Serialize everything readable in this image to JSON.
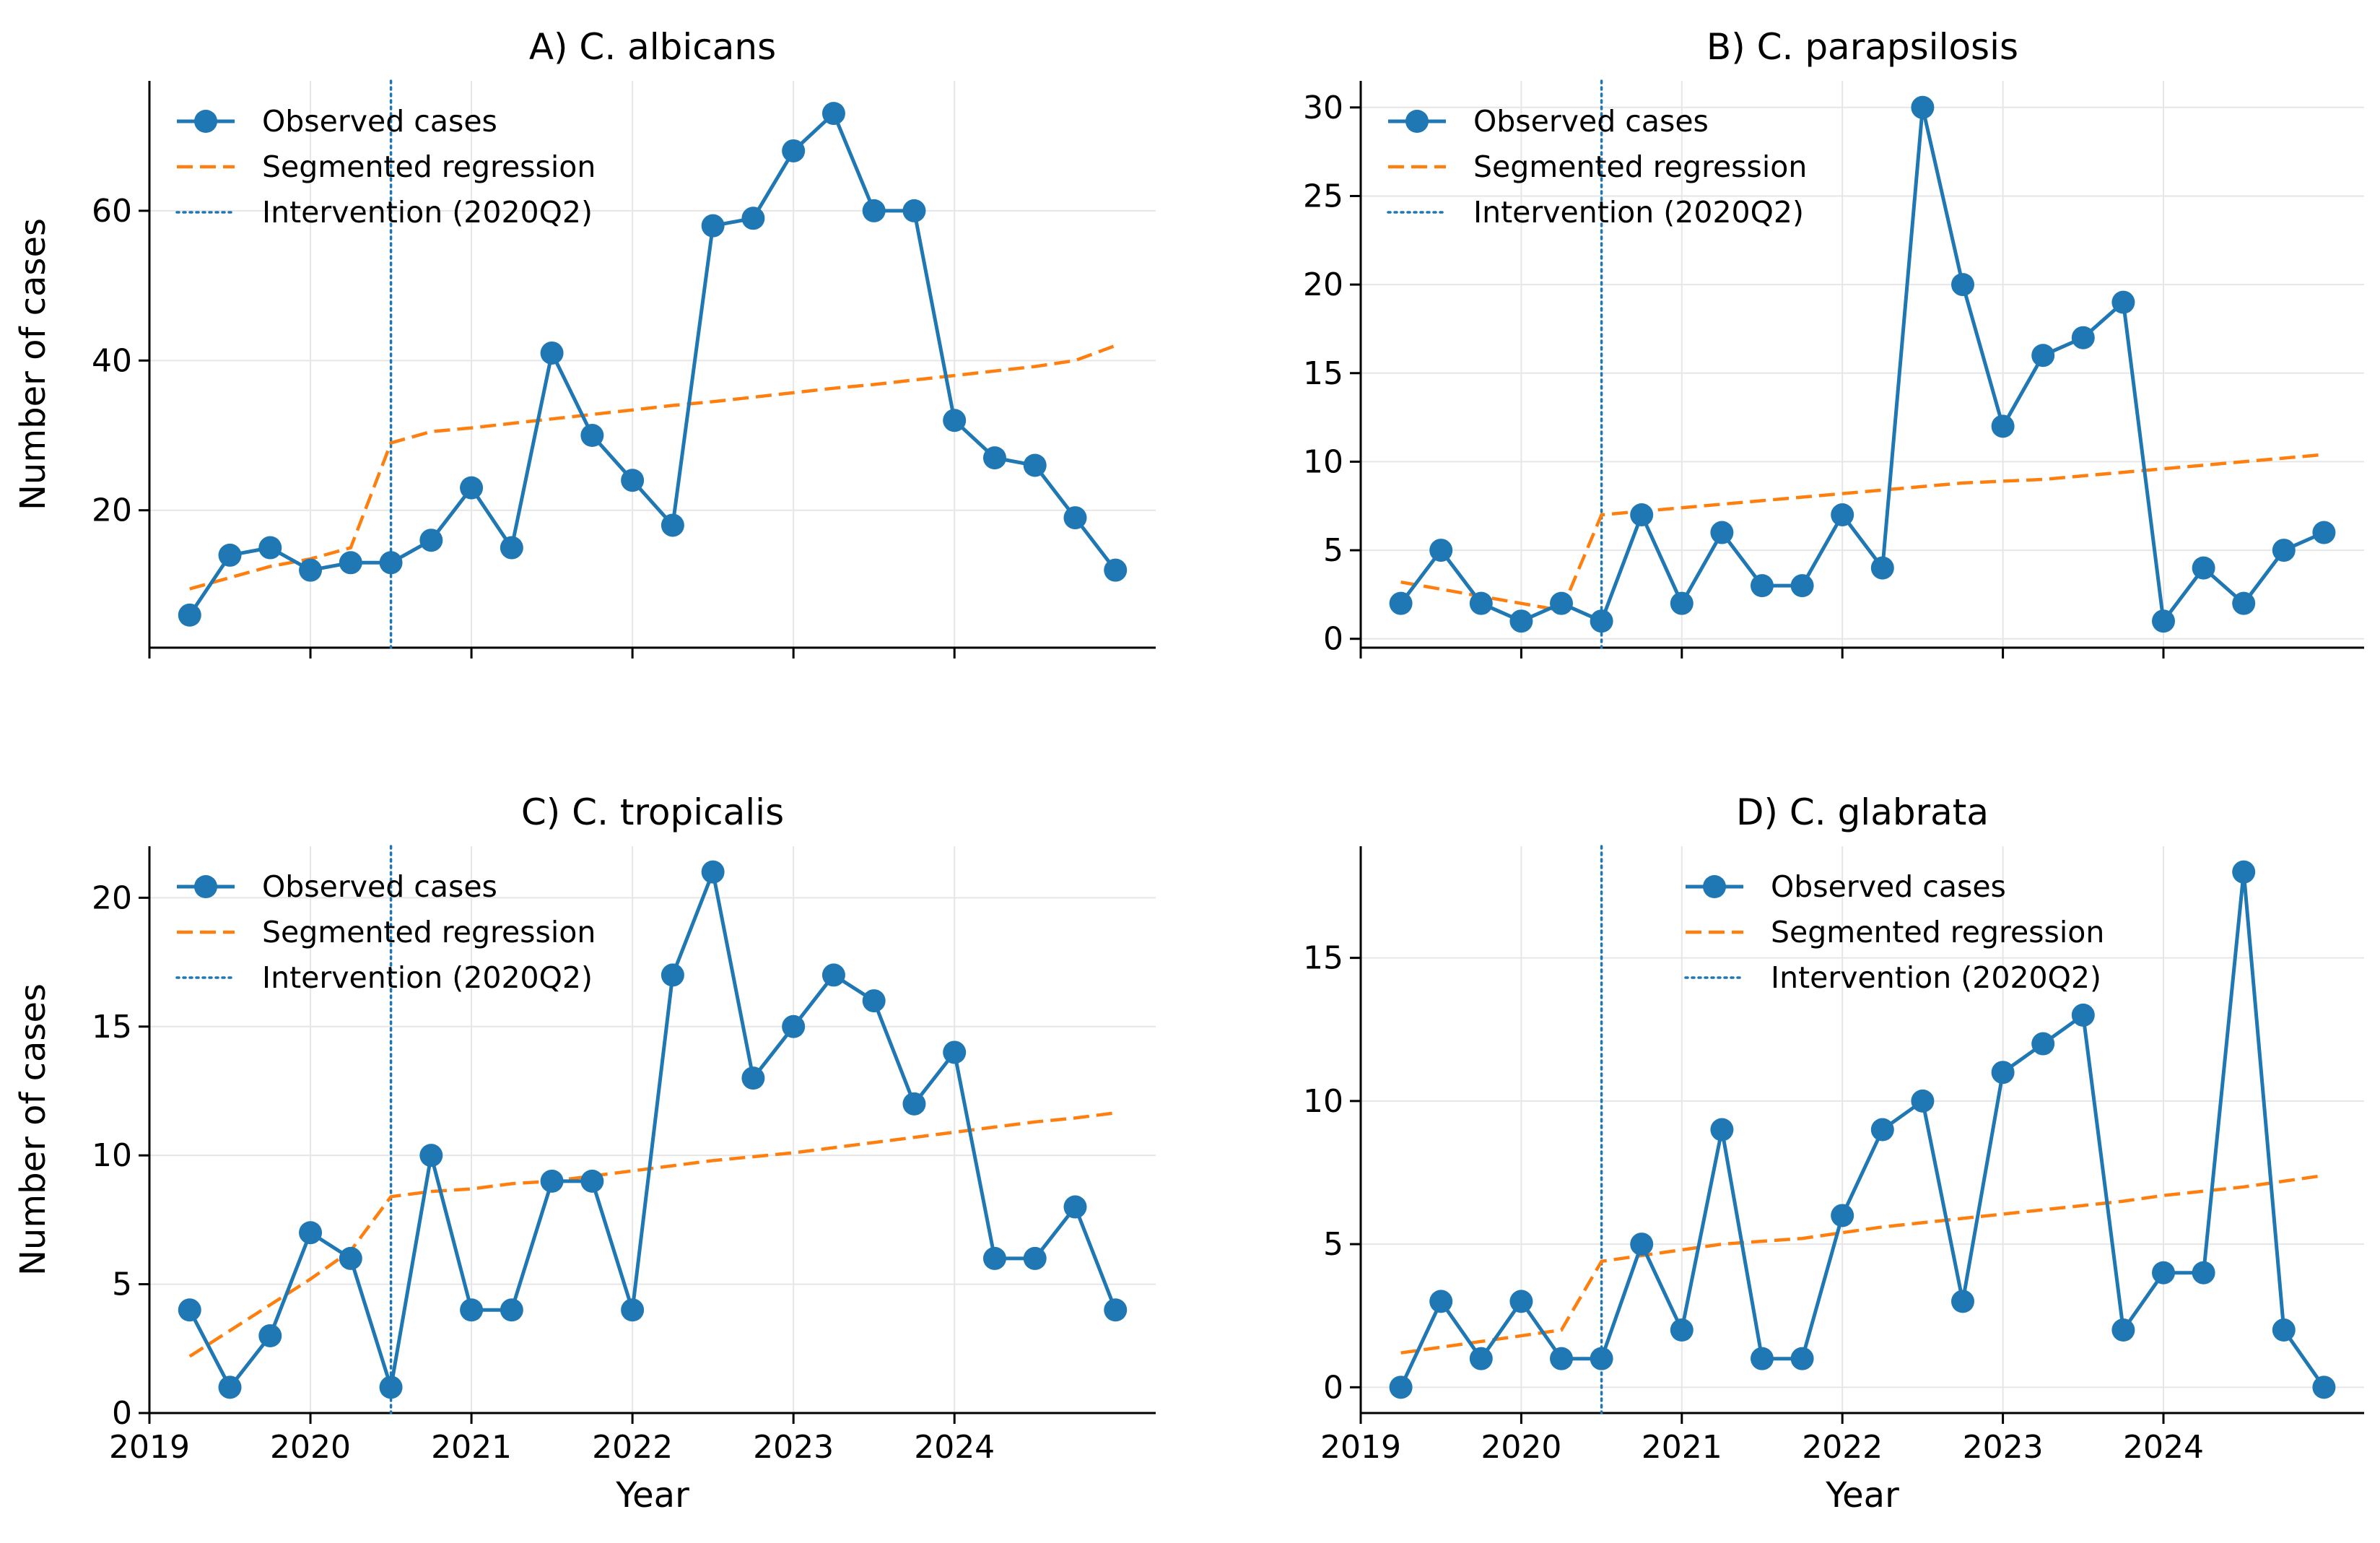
{
  "chart_data": [
    {
      "type": "line",
      "title": "A) C. albicans",
      "xlabel": "",
      "ylabel": "Number of cases",
      "xlim": [
        2019.0,
        2025.25
      ],
      "ylim": [
        1.65,
        77.35
      ],
      "yticks": [
        20,
        40,
        60
      ],
      "xticks": [
        2019,
        2020,
        2021,
        2022,
        2023,
        2024
      ],
      "show_xtick_labels": false,
      "grid": true,
      "legend_position": "top-left",
      "legend": [
        "Observed cases",
        "Segmented regression",
        "Intervention (2020Q2)"
      ],
      "intervention_x": 2020.5,
      "x": [
        2019.25,
        2019.5,
        2019.75,
        2020.0,
        2020.25,
        2020.5,
        2020.75,
        2021.0,
        2021.25,
        2021.5,
        2021.75,
        2022.0,
        2022.25,
        2022.5,
        2022.75,
        2023.0,
        2023.25,
        2023.5,
        2023.75,
        2024.0,
        2024.25,
        2024.5,
        2024.75,
        2025.0
      ],
      "series": [
        {
          "name": "Observed cases",
          "values": [
            6,
            14,
            15,
            12,
            13,
            13,
            16,
            23,
            15,
            41,
            30,
            24,
            18,
            58,
            59,
            68,
            73,
            60,
            60,
            32,
            27,
            26,
            19,
            12
          ]
        },
        {
          "name": "Segmented regression",
          "values": [
            9.5,
            11.0,
            12.5,
            13.5,
            15.0,
            29.0,
            30.5,
            31.0,
            31.6,
            32.2,
            32.8,
            33.4,
            34.0,
            34.5,
            35.1,
            35.7,
            36.3,
            36.8,
            37.4,
            38.0,
            38.6,
            39.2,
            40.0,
            42.0
          ]
        }
      ]
    },
    {
      "type": "line",
      "title": "B) C. parapsilosis",
      "xlabel": "",
      "ylabel": "",
      "xlim": [
        2019.0,
        2025.25
      ],
      "ylim": [
        -0.5,
        31.5
      ],
      "yticks": [
        0,
        5,
        10,
        15,
        20,
        25,
        30
      ],
      "xticks": [
        2019,
        2020,
        2021,
        2022,
        2023,
        2024
      ],
      "show_xtick_labels": false,
      "grid": true,
      "legend_position": "top-left",
      "legend": [
        "Observed cases",
        "Segmented regression",
        "Intervention (2020Q2)"
      ],
      "intervention_x": 2020.5,
      "x": [
        2019.25,
        2019.5,
        2019.75,
        2020.0,
        2020.25,
        2020.5,
        2020.75,
        2021.0,
        2021.25,
        2021.5,
        2021.75,
        2022.0,
        2022.25,
        2022.5,
        2022.75,
        2023.0,
        2023.25,
        2023.5,
        2023.75,
        2024.0,
        2024.25,
        2024.5,
        2024.75,
        2025.0
      ],
      "series": [
        {
          "name": "Observed cases",
          "values": [
            2,
            5,
            2,
            1,
            2,
            1,
            7,
            2,
            6,
            3,
            3,
            7,
            4,
            30,
            20,
            12,
            16,
            17,
            19,
            1,
            4,
            2,
            5,
            6
          ]
        },
        {
          "name": "Segmented regression",
          "values": [
            3.2,
            2.8,
            2.4,
            2.0,
            1.6,
            7.0,
            7.2,
            7.4,
            7.6,
            7.8,
            8.0,
            8.2,
            8.4,
            8.6,
            8.8,
            8.9,
            9.0,
            9.2,
            9.4,
            9.6,
            9.8,
            10.0,
            10.2,
            10.4
          ]
        }
      ]
    },
    {
      "type": "line",
      "title": "C) C. tropicalis",
      "xlabel": "Year",
      "ylabel": "Number of cases",
      "xlim": [
        2019.0,
        2025.25
      ],
      "ylim": [
        0,
        22
      ],
      "yticks": [
        0,
        5,
        10,
        15,
        20
      ],
      "xticks": [
        2019,
        2020,
        2021,
        2022,
        2023,
        2024
      ],
      "show_xtick_labels": true,
      "grid": true,
      "legend_position": "top-left",
      "legend": [
        "Observed cases",
        "Segmented regression",
        "Intervention (2020Q2)"
      ],
      "intervention_x": 2020.5,
      "x": [
        2019.25,
        2019.5,
        2019.75,
        2020.0,
        2020.25,
        2020.5,
        2020.75,
        2021.0,
        2021.25,
        2021.5,
        2021.75,
        2022.0,
        2022.25,
        2022.5,
        2022.75,
        2023.0,
        2023.25,
        2023.5,
        2023.75,
        2024.0,
        2024.25,
        2024.5,
        2024.75,
        2025.0
      ],
      "series": [
        {
          "name": "Observed cases",
          "values": [
            4,
            1,
            3,
            7,
            6,
            1,
            10,
            4,
            4,
            9,
            9,
            4,
            17,
            21,
            13,
            15,
            17,
            16,
            12,
            14,
            6,
            6,
            8,
            4
          ]
        },
        {
          "name": "Segmented regression",
          "values": [
            2.2,
            3.2,
            4.2,
            5.2,
            6.3,
            8.4,
            8.6,
            8.7,
            8.9,
            9.0,
            9.2,
            9.4,
            9.6,
            9.8,
            9.95,
            10.1,
            10.3,
            10.5,
            10.7,
            10.9,
            11.1,
            11.3,
            11.45,
            11.65
          ]
        }
      ]
    },
    {
      "type": "line",
      "title": "D) C. glabrata",
      "xlabel": "Year",
      "ylabel": "",
      "xlim": [
        2019.0,
        2025.25
      ],
      "ylim": [
        -0.9,
        18.9
      ],
      "yticks": [
        0,
        5,
        10,
        15
      ],
      "xticks": [
        2019,
        2020,
        2021,
        2022,
        2023,
        2024
      ],
      "show_xtick_labels": true,
      "grid": true,
      "legend_position": "top-center",
      "legend": [
        "Observed cases",
        "Segmented regression",
        "Intervention (2020Q2)"
      ],
      "intervention_x": 2020.5,
      "x": [
        2019.25,
        2019.5,
        2019.75,
        2020.0,
        2020.25,
        2020.5,
        2020.75,
        2021.0,
        2021.25,
        2021.5,
        2021.75,
        2022.0,
        2022.25,
        2022.5,
        2022.75,
        2023.0,
        2023.25,
        2023.5,
        2023.75,
        2024.0,
        2024.25,
        2024.5,
        2024.75,
        2025.0
      ],
      "series": [
        {
          "name": "Observed cases",
          "values": [
            0,
            3,
            1,
            3,
            1,
            1,
            5,
            2,
            9,
            1,
            1,
            6,
            9,
            10,
            3,
            11,
            12,
            13,
            2,
            4,
            4,
            18,
            2,
            0
          ]
        },
        {
          "name": "Segmented regression",
          "values": [
            1.2,
            1.4,
            1.6,
            1.8,
            2.0,
            4.4,
            4.6,
            4.8,
            5.0,
            5.1,
            5.2,
            5.4,
            5.6,
            5.75,
            5.9,
            6.05,
            6.2,
            6.35,
            6.5,
            6.7,
            6.85,
            7.0,
            7.2,
            7.4
          ]
        }
      ]
    }
  ],
  "colors": {
    "observed": "#1f77b4",
    "regression": "#ff7f0e",
    "intervention": "#1f77b4",
    "grid": "#e6e6e6",
    "axis": "#000000"
  }
}
